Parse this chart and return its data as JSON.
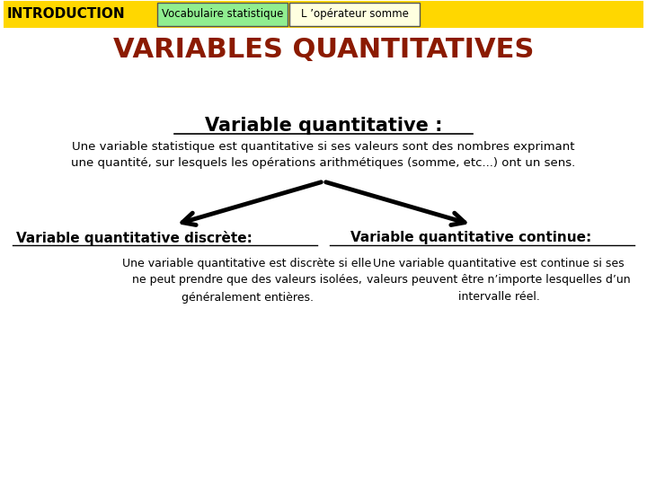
{
  "bg_color": "#ffffff",
  "header_bar_color": "#FFD700",
  "header_tab1_color": "#90EE90",
  "header_tab2_color": "#FFFFE0",
  "header_intro_text": "INTRODUCTION",
  "header_tab1_text": "Vocabulaire statistique",
  "header_tab2_text": "L ’opérateur somme",
  "main_title": "VARIABLES QUANTITATIVES",
  "main_title_color": "#8B1A00",
  "section_title": "Variable quantitative :",
  "section_body": "Une variable statistique est quantitative si ses valeurs sont des nombres exprimant\nune quantité, sur lesquels les opérations arithmétiques (somme, etc...) ont un sens.",
  "left_title": "Variable quantitative discrète:",
  "left_body": "Une variable quantitative est discrète si elle\nne peut prendre que des valeurs isolées,\ngénéralement entières.",
  "right_title": "Variable quantitative continue:",
  "right_body": "Une variable quantitative est continue si ses\nvaleurs peuvent être n’importe lesquelles d’un\nintervalle réel.",
  "text_color": "#000000",
  "arrow_color": "#000000"
}
